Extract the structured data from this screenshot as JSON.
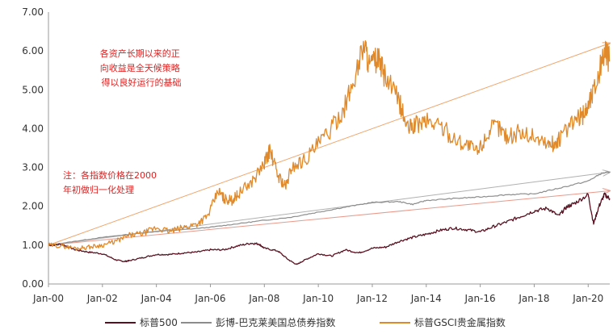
{
  "chart_data": {
    "type": "line",
    "x_ticks": [
      "Jan-00",
      "Jan-02",
      "Jan-04",
      "Jan-06",
      "Jan-08",
      "Jan-10",
      "Jan-12",
      "Jan-14",
      "Jan-16",
      "Jan-18",
      "Jan-20"
    ],
    "y_ticks": [
      "0.00",
      "1.00",
      "2.00",
      "3.00",
      "4.00",
      "5.00",
      "6.00",
      "7.00"
    ],
    "ylim": [
      0,
      7
    ],
    "xlim": [
      2000,
      2020.8
    ],
    "annotations": [
      {
        "lines": [
          "各资产长期以来的正",
          "向收益是全天候策略",
          "得以良好运行的基础"
        ]
      },
      {
        "lines": [
          "注：各指数价格在2000",
          "年初做归一化处理"
        ]
      }
    ],
    "colors": {
      "sp500": "#5a1020",
      "bond": "#8c8c8c",
      "gold": "#e0892a",
      "arrow_gold": "#f0a46a",
      "arrow_bond": "#b0b0b0",
      "arrow_sp": "#e8998a"
    },
    "series": [
      {
        "name": "标普500",
        "key": "sp500",
        "x": [
          2000,
          2000.5,
          2001,
          2001.5,
          2002,
          2002.5,
          2002.8,
          2003,
          2003.5,
          2004,
          2004.5,
          2005,
          2005.5,
          2006,
          2006.5,
          2007,
          2007.5,
          2007.8,
          2008,
          2008.5,
          2008.9,
          2009.2,
          2009.5,
          2010,
          2010.5,
          2011,
          2011.5,
          2012,
          2012.5,
          2013,
          2013.5,
          2014,
          2014.5,
          2015,
          2015.5,
          2016,
          2016.5,
          2017,
          2017.5,
          2018,
          2018.5,
          2018.9,
          2019.2,
          2019.5,
          2020,
          2020.2,
          2020.4,
          2020.6,
          2020.8
        ],
        "y": [
          1.0,
          1.02,
          0.88,
          0.82,
          0.78,
          0.62,
          0.58,
          0.6,
          0.68,
          0.76,
          0.76,
          0.8,
          0.82,
          0.88,
          0.88,
          0.98,
          1.05,
          1.03,
          0.92,
          0.85,
          0.62,
          0.5,
          0.62,
          0.78,
          0.72,
          0.88,
          0.8,
          0.92,
          0.95,
          1.1,
          1.2,
          1.28,
          1.38,
          1.44,
          1.4,
          1.34,
          1.48,
          1.6,
          1.74,
          1.88,
          1.95,
          1.75,
          1.98,
          2.08,
          2.3,
          1.55,
          2.0,
          2.3,
          2.2
        ]
      },
      {
        "name": "彭博-巴克莱美国总债券指数",
        "key": "bond",
        "x": [
          2000,
          2001,
          2002,
          2003,
          2004,
          2005,
          2006,
          2007,
          2008,
          2009,
          2010,
          2011,
          2012,
          2013,
          2013.5,
          2014,
          2015,
          2016,
          2017,
          2018,
          2019,
          2020,
          2020.5,
          2020.8
        ],
        "y": [
          1.0,
          1.1,
          1.2,
          1.28,
          1.35,
          1.4,
          1.46,
          1.55,
          1.64,
          1.72,
          1.85,
          1.98,
          2.1,
          2.12,
          2.05,
          2.15,
          2.2,
          2.24,
          2.3,
          2.32,
          2.48,
          2.65,
          2.85,
          2.88
        ]
      },
      {
        "name": "标普GSCI贵金属指数",
        "key": "gold",
        "x": [
          2000,
          2000.5,
          2001,
          2001.5,
          2002,
          2002.5,
          2003,
          2003.5,
          2004,
          2004.5,
          2005,
          2005.5,
          2005.9,
          2006.3,
          2006.5,
          2006.8,
          2007,
          2007.5,
          2008,
          2008.2,
          2008.5,
          2008.8,
          2009,
          2009.5,
          2010,
          2010.5,
          2011,
          2011.3,
          2011.7,
          2011.9,
          2012.2,
          2012.5,
          2013,
          2013.3,
          2013.6,
          2014,
          2014.5,
          2015,
          2015.5,
          2015.9,
          2016.3,
          2016.6,
          2017,
          2017.5,
          2018,
          2018.5,
          2018.8,
          2019,
          2019.5,
          2019.8,
          2020,
          2020.3,
          2020.6,
          2020.8
        ],
        "y": [
          1.0,
          0.98,
          0.92,
          0.95,
          1.0,
          1.1,
          1.25,
          1.3,
          1.45,
          1.35,
          1.45,
          1.55,
          1.75,
          2.4,
          2.2,
          2.15,
          2.3,
          2.6,
          3.1,
          3.45,
          2.8,
          2.5,
          3.0,
          3.2,
          3.6,
          4.0,
          4.6,
          5.2,
          6.2,
          5.6,
          5.8,
          5.3,
          4.7,
          4.0,
          4.1,
          4.2,
          4.1,
          3.75,
          3.6,
          3.4,
          3.9,
          4.1,
          3.8,
          3.9,
          3.8,
          3.6,
          3.6,
          3.8,
          4.2,
          4.35,
          4.6,
          5.2,
          6.0,
          5.75
        ]
      }
    ],
    "trend_arrows": [
      {
        "key": "gold",
        "from": [
          2000,
          1.0
        ],
        "to": [
          2020.8,
          6.2
        ]
      },
      {
        "key": "bond",
        "from": [
          2000,
          1.0
        ],
        "to": [
          2020.8,
          2.88
        ]
      },
      {
        "key": "sp",
        "from": [
          2000,
          1.0
        ],
        "to": [
          2020.8,
          2.4
        ]
      }
    ]
  }
}
